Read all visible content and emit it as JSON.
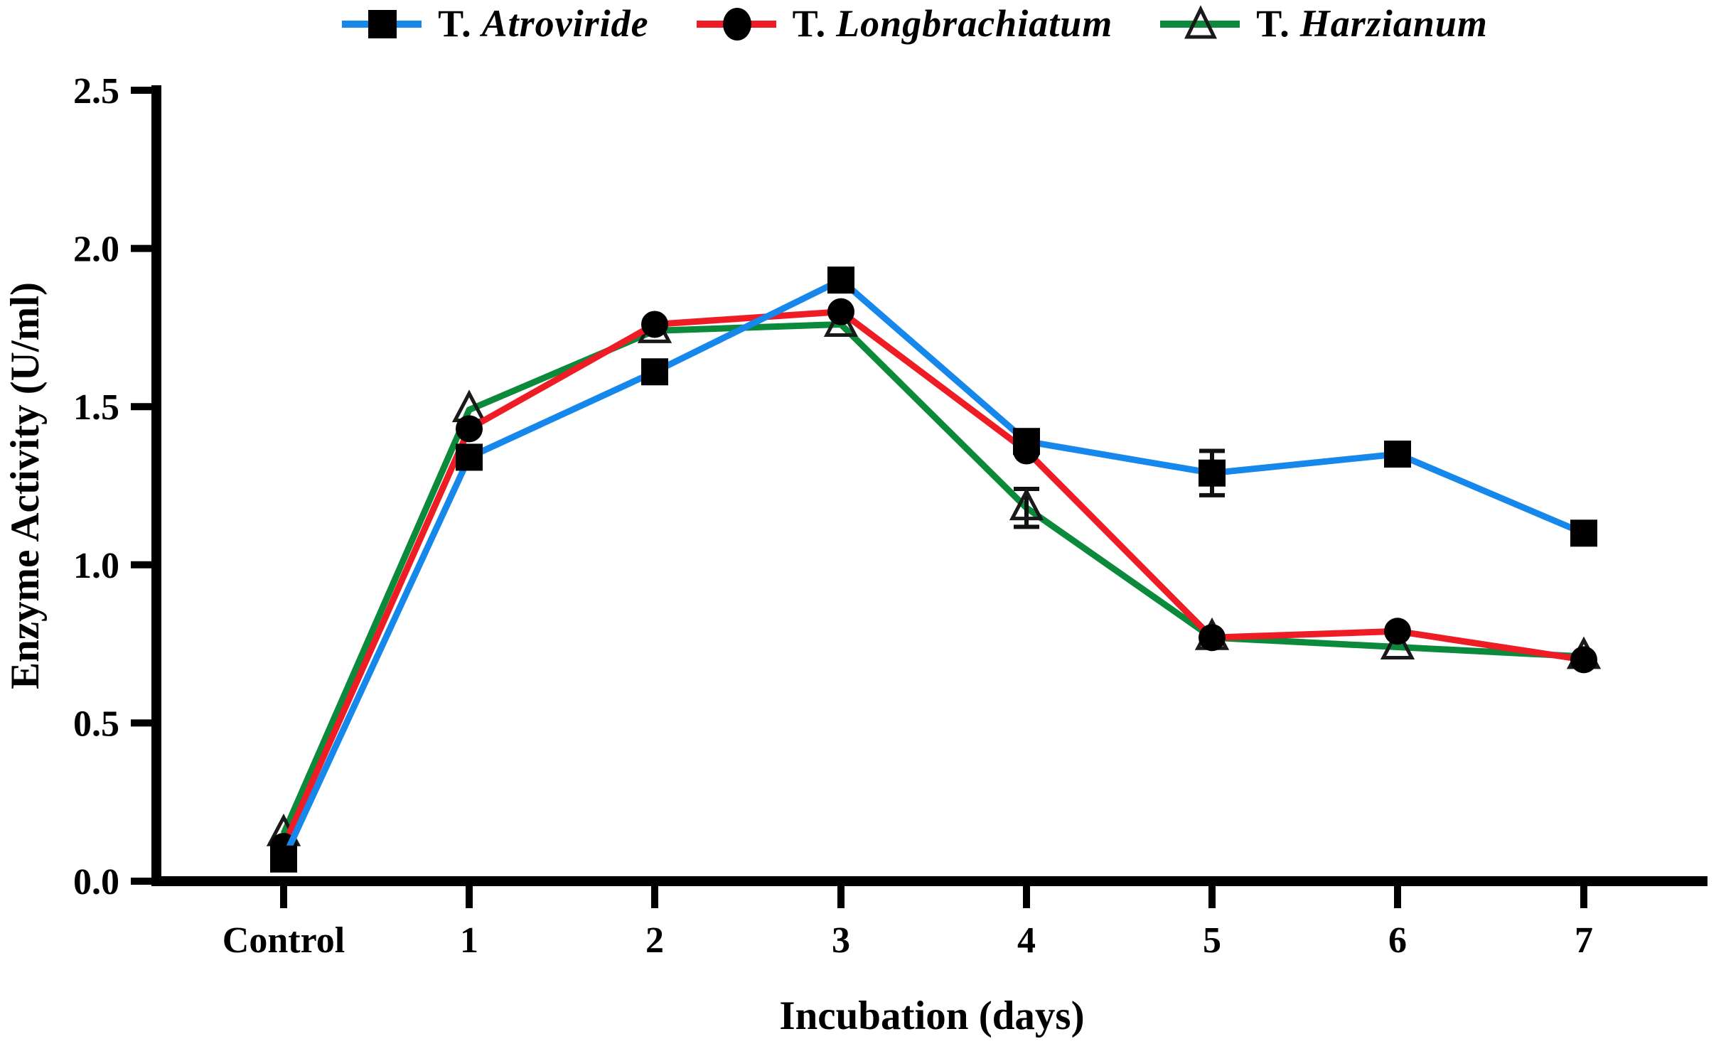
{
  "chart_data": {
    "type": "line",
    "title": "",
    "xlabel": "Incubation (days)",
    "ylabel": "Enzyme Activity (U/ml)",
    "categories": [
      "Control",
      "1",
      "2",
      "3",
      "4",
      "5",
      "6",
      "7"
    ],
    "ylim": [
      0.0,
      2.5
    ],
    "yticks": [
      0.0,
      0.5,
      1.0,
      1.5,
      2.0,
      2.5
    ],
    "ytick_labels": [
      "0.0",
      "0.5",
      "1.0",
      "1.5",
      "2.0",
      "2.5"
    ],
    "grid": false,
    "legend_position": "top-center",
    "axis_color": "#000000",
    "marker_color": "#000000",
    "series": [
      {
        "name": "T. Atroviride",
        "prefix": "T.",
        "species": "Atroviride",
        "color": "#1688ec",
        "marker": "filled-square",
        "values": [
          0.07,
          1.34,
          1.61,
          1.9,
          1.39,
          1.29,
          1.35,
          1.1
        ],
        "errors": [
          0,
          0,
          0,
          0,
          0,
          0.07,
          0,
          0
        ]
      },
      {
        "name": "T. Longbrachiatum",
        "prefix": "T.",
        "species": "Longbrachiatum",
        "color": "#ee1d25",
        "marker": "filled-circle",
        "values": [
          0.11,
          1.43,
          1.76,
          1.8,
          1.36,
          0.77,
          0.79,
          0.7
        ],
        "errors": [
          0,
          0,
          0,
          0,
          0,
          0,
          0,
          0
        ]
      },
      {
        "name": "T. Harzianum",
        "prefix": "T.",
        "species": "Harzianum",
        "color": "#0a8a3a",
        "marker": "open-triangle",
        "values": [
          0.15,
          1.49,
          1.74,
          1.76,
          1.18,
          0.77,
          0.74,
          0.71
        ],
        "errors": [
          0,
          0,
          0,
          0,
          0.06,
          0,
          0,
          0
        ]
      }
    ]
  }
}
